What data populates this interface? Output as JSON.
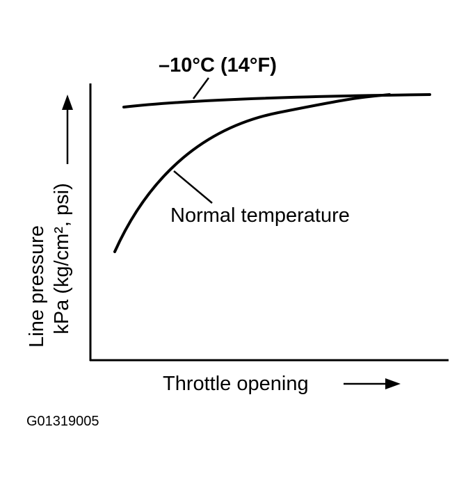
{
  "labels": {
    "cold_curve": "–10°C (14°F)",
    "normal_curve": "Normal temperature",
    "y_axis_line1": "Line pressure",
    "y_axis_line2": "kPa (kg/cm², psi)",
    "x_axis": "Throttle opening"
  },
  "figure_id": "G01319005"
}
